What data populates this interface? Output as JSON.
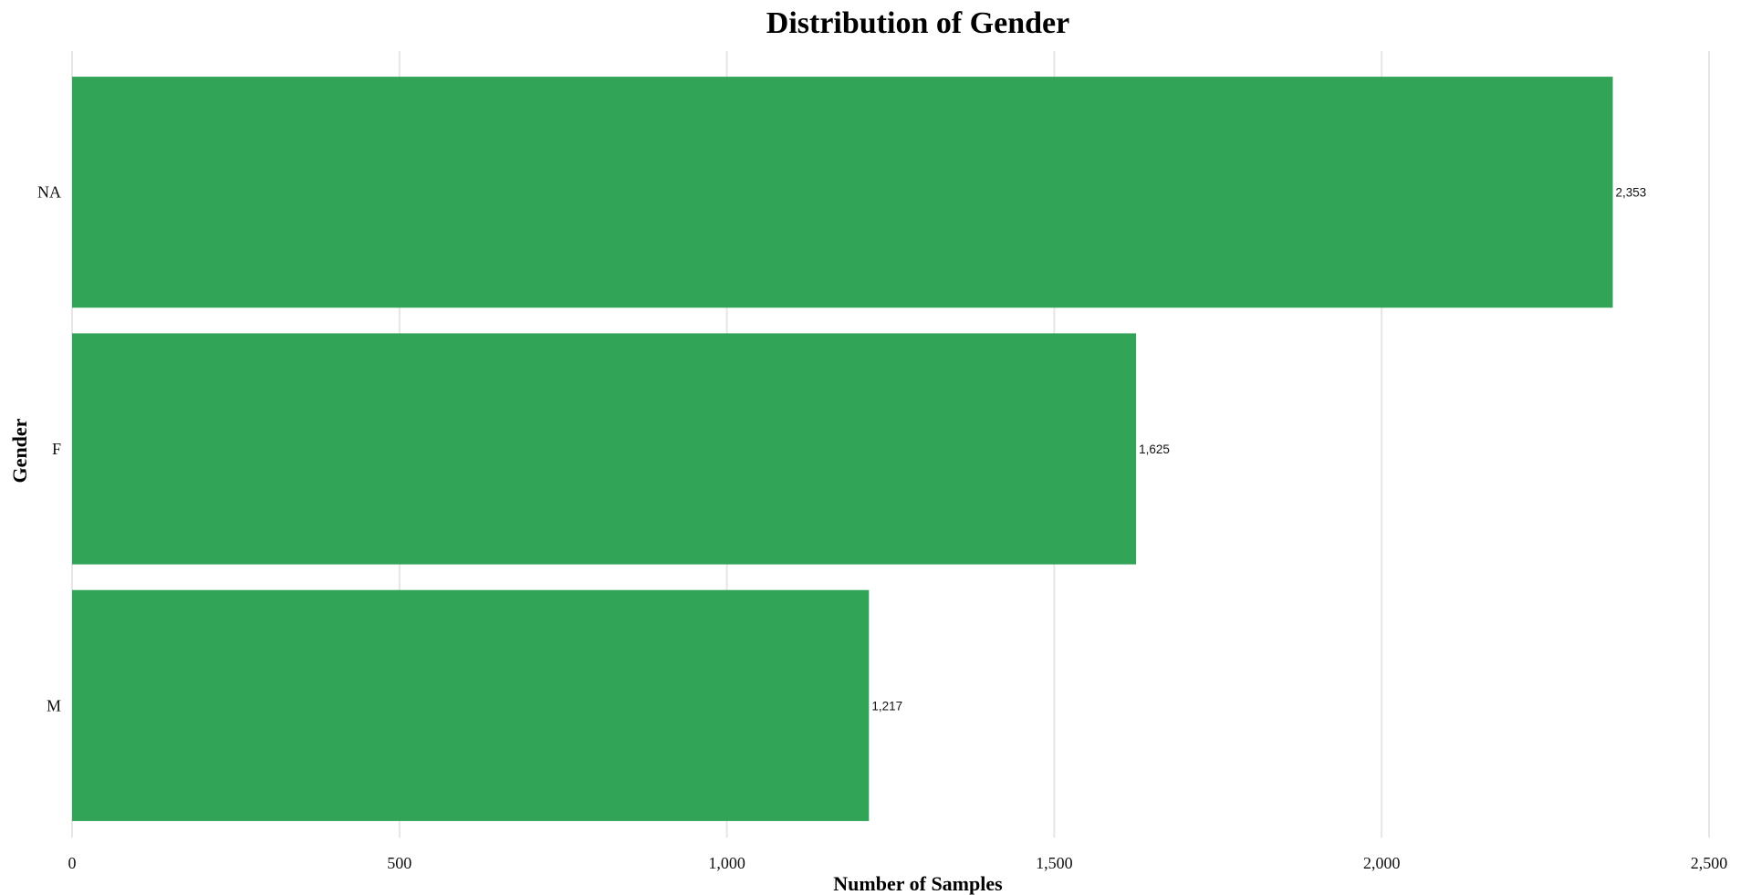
{
  "chart_data": {
    "type": "bar",
    "orientation": "horizontal",
    "title": "Distribution of Gender",
    "xlabel": "Number of Samples",
    "ylabel": "Gender",
    "categories": [
      "NA",
      "F",
      "M"
    ],
    "values": [
      2353,
      1625,
      1217
    ],
    "data_labels": [
      "2,353",
      "1,625",
      "1,217"
    ],
    "xlim": [
      0,
      2500
    ],
    "x_ticks": [
      0,
      500,
      1000,
      1500,
      2000,
      2500
    ],
    "x_tick_labels": [
      "0",
      "500",
      "1,000",
      "1,500",
      "2,000",
      "2,500"
    ],
    "grid": "vertical",
    "legend": "none",
    "bar_color": "#32a457"
  }
}
